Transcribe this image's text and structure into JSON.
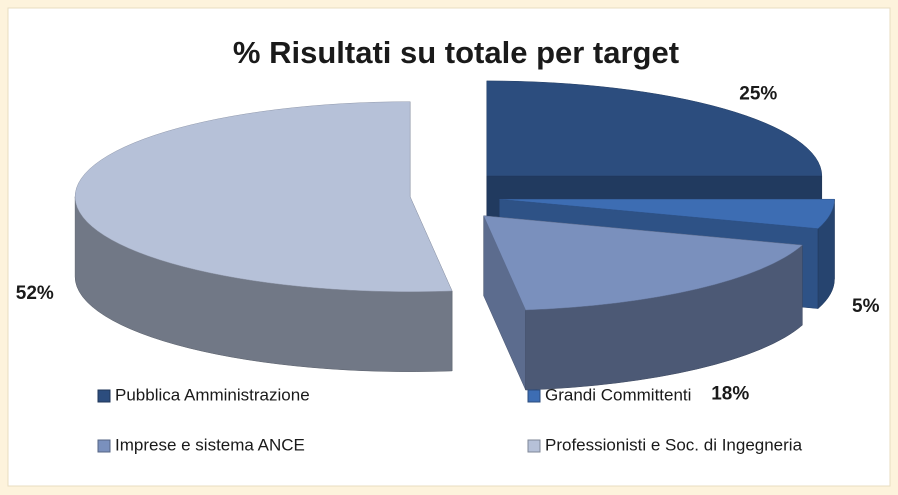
{
  "chart_data": {
    "type": "pie",
    "title": "% Risultati su totale per target",
    "categories": [
      "Pubblica Amministrazione",
      "Grandi Committenti",
      "Imprese e sistema ANCE",
      "Professionisti e Soc. di Ingegneria"
    ],
    "values": [
      25,
      5,
      18,
      52
    ],
    "value_labels": [
      "25%",
      "5%",
      "18%",
      "52%"
    ],
    "colors": [
      "#2c4d7e",
      "#3d6db3",
      "#7a90bd",
      "#b6c1d8"
    ],
    "legend": "bottom"
  }
}
